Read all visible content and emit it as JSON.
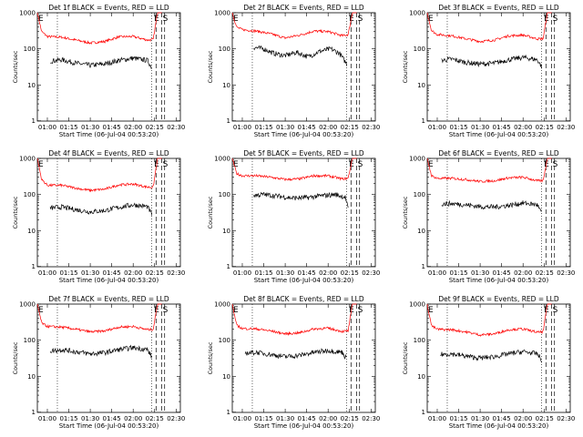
{
  "chart_data": [
    {
      "type": "line",
      "title": "Det 1f BLACK = Events, RED = LLD",
      "xlabel": "Start Time (06-Jul-04 00:53:20)",
      "ylabel": "Counts/sec",
      "yscale": "log",
      "ylim": [
        1,
        1000
      ],
      "xlim": [
        "00:53",
        "02:33"
      ],
      "x_ticks": [
        "01:00",
        "01:15",
        "01:30",
        "01:45",
        "02:00",
        "02:15",
        "02:30"
      ],
      "y_ticks": [
        "1",
        "10",
        "100",
        "1000"
      ],
      "markers": [
        "E",
        "S"
      ],
      "series": [
        {
          "color": "#ff0000",
          "x": [
            "00:53",
            "00:56",
            "01:00",
            "01:10",
            "01:20",
            "01:30",
            "01:40",
            "01:50",
            "02:00",
            "02:10",
            "02:14",
            "02:17",
            "02:20"
          ],
          "y": [
            1000,
            300,
            220,
            210,
            175,
            145,
            160,
            215,
            220,
            175,
            180,
            1000,
            1000
          ]
        },
        {
          "color": "#000000",
          "x": [
            "01:02",
            "01:10",
            "01:20",
            "01:30",
            "01:40",
            "01:50",
            "02:00",
            "02:10",
            "02:13"
          ],
          "y": [
            46,
            50,
            40,
            35,
            38,
            48,
            55,
            48,
            30
          ]
        }
      ]
    },
    {
      "type": "line",
      "title": "Det 2f BLACK = Events, RED = LLD",
      "xlabel": "Start Time (06-Jul-04 00:53:20)",
      "ylabel": "Counts/sec",
      "yscale": "log",
      "ylim": [
        1,
        1000
      ],
      "xlim": [
        "00:53",
        "02:33"
      ],
      "x_ticks": [
        "01:00",
        "01:15",
        "01:30",
        "01:45",
        "02:00",
        "02:15",
        "02:30"
      ],
      "y_ticks": [
        "1",
        "10",
        "100",
        "1000"
      ],
      "markers": [
        "E",
        "S"
      ],
      "series": [
        {
          "color": "#ff0000",
          "x": [
            "00:53",
            "00:56",
            "01:00",
            "01:10",
            "01:20",
            "01:30",
            "01:40",
            "01:50",
            "02:00",
            "02:10",
            "02:14",
            "02:17",
            "02:20"
          ],
          "y": [
            1000,
            400,
            340,
            310,
            260,
            200,
            240,
            310,
            300,
            230,
            250,
            1000,
            1000
          ]
        },
        {
          "color": "#000000",
          "x": [
            "01:08",
            "01:15",
            "01:22",
            "01:30",
            "01:38",
            "01:46",
            "01:54",
            "02:02",
            "02:08",
            "02:13"
          ],
          "y": [
            110,
            100,
            75,
            65,
            80,
            60,
            85,
            100,
            75,
            38
          ]
        }
      ]
    },
    {
      "type": "line",
      "title": "Det 3f BLACK = Events, RED = LLD",
      "xlabel": "Start Time (06-Jul-04 00:53:20)",
      "ylabel": "Counts/sec",
      "yscale": "log",
      "ylim": [
        1,
        1000
      ],
      "xlim": [
        "00:53",
        "02:33"
      ],
      "x_ticks": [
        "01:00",
        "01:15",
        "01:30",
        "01:45",
        "02:00",
        "02:15",
        "02:30"
      ],
      "y_ticks": [
        "1",
        "10",
        "100",
        "1000"
      ],
      "markers": [
        "E",
        "S"
      ],
      "series": [
        {
          "color": "#ff0000",
          "x": [
            "00:53",
            "00:56",
            "01:00",
            "01:10",
            "01:20",
            "01:30",
            "01:40",
            "01:50",
            "02:00",
            "02:10",
            "02:14",
            "02:17",
            "02:20"
          ],
          "y": [
            1000,
            320,
            250,
            230,
            190,
            160,
            175,
            230,
            240,
            190,
            190,
            1000,
            1000
          ]
        },
        {
          "color": "#000000",
          "x": [
            "01:03",
            "01:10",
            "01:20",
            "01:30",
            "01:40",
            "01:50",
            "02:00",
            "02:10",
            "02:13"
          ],
          "y": [
            48,
            52,
            42,
            38,
            40,
            50,
            58,
            50,
            32
          ]
        }
      ]
    },
    {
      "type": "line",
      "title": "Det 4f BLACK = Events, RED = LLD",
      "xlabel": "Start Time (06-Jul-04 00:53:20)",
      "ylabel": "Counts/sec",
      "yscale": "log",
      "ylim": [
        1,
        1000
      ],
      "xlim": [
        "00:53",
        "02:33"
      ],
      "x_ticks": [
        "01:00",
        "01:15",
        "01:30",
        "01:45",
        "02:00",
        "02:15",
        "02:30"
      ],
      "y_ticks": [
        "1",
        "10",
        "100",
        "1000"
      ],
      "markers": [
        "E",
        "S"
      ],
      "series": [
        {
          "color": "#ff0000",
          "x": [
            "00:53",
            "00:56",
            "01:00",
            "01:10",
            "01:20",
            "01:30",
            "01:40",
            "01:50",
            "02:00",
            "02:10",
            "02:14",
            "02:17",
            "02:20"
          ],
          "y": [
            1000,
            260,
            180,
            180,
            150,
            130,
            140,
            185,
            195,
            160,
            160,
            1000,
            1000
          ]
        },
        {
          "color": "#000000",
          "x": [
            "01:02",
            "01:10",
            "01:20",
            "01:30",
            "01:40",
            "01:50",
            "02:00",
            "02:10",
            "02:13"
          ],
          "y": [
            42,
            45,
            38,
            33,
            36,
            44,
            52,
            46,
            28
          ]
        }
      ]
    },
    {
      "type": "line",
      "title": "Det 5f BLACK = Events, RED = LLD",
      "xlabel": "Start Time (06-Jul-04 00:53:20)",
      "ylabel": "Counts/sec",
      "yscale": "log",
      "ylim": [
        1,
        1000
      ],
      "xlim": [
        "00:53",
        "02:33"
      ],
      "x_ticks": [
        "01:00",
        "01:15",
        "01:30",
        "01:45",
        "02:00",
        "02:15",
        "02:30"
      ],
      "y_ticks": [
        "1",
        "10",
        "100",
        "1000"
      ],
      "markers": [
        "E",
        "S"
      ],
      "series": [
        {
          "color": "#ff0000",
          "x": [
            "00:53",
            "00:56",
            "01:00",
            "01:10",
            "01:20",
            "01:30",
            "01:40",
            "01:50",
            "02:00",
            "02:10",
            "02:14",
            "02:17",
            "02:20"
          ],
          "y": [
            1000,
            380,
            330,
            330,
            300,
            260,
            270,
            330,
            330,
            270,
            280,
            1000,
            1000
          ]
        },
        {
          "color": "#000000",
          "x": [
            "01:08",
            "01:15",
            "01:25",
            "01:35",
            "01:45",
            "01:55",
            "02:05",
            "02:12",
            "02:14"
          ],
          "y": [
            95,
            100,
            90,
            80,
            82,
            92,
            100,
            85,
            40
          ]
        }
      ]
    },
    {
      "type": "line",
      "title": "Det 6f BLACK = Events, RED = LLD",
      "xlabel": "Start Time (06-Jul-04 00:53:20)",
      "ylabel": "Counts/sec",
      "yscale": "log",
      "ylim": [
        1,
        1000
      ],
      "xlim": [
        "00:53",
        "02:33"
      ],
      "x_ticks": [
        "01:00",
        "01:15",
        "01:30",
        "01:45",
        "02:00",
        "02:15",
        "02:30"
      ],
      "y_ticks": [
        "1",
        "10",
        "100",
        "1000"
      ],
      "markers": [
        "E",
        "S"
      ],
      "series": [
        {
          "color": "#ff0000",
          "x": [
            "00:53",
            "00:56",
            "01:00",
            "01:10",
            "01:20",
            "01:30",
            "01:40",
            "01:50",
            "02:00",
            "02:10",
            "02:14",
            "02:17",
            "02:20"
          ],
          "y": [
            1000,
            330,
            280,
            280,
            260,
            230,
            240,
            290,
            300,
            240,
            240,
            1000,
            1000
          ]
        },
        {
          "color": "#000000",
          "x": [
            "01:03",
            "01:10",
            "01:20",
            "01:30",
            "01:40",
            "01:50",
            "02:00",
            "02:10",
            "02:13"
          ],
          "y": [
            55,
            56,
            52,
            46,
            45,
            50,
            58,
            52,
            30
          ]
        }
      ]
    },
    {
      "type": "line",
      "title": "Det 7f BLACK = Events, RED = LLD",
      "xlabel": "Start Time (06-Jul-04 00:53:20)",
      "ylabel": "Counts/sec",
      "yscale": "log",
      "ylim": [
        1,
        1000
      ],
      "xlim": [
        "00:53",
        "02:33"
      ],
      "x_ticks": [
        "01:00",
        "01:15",
        "01:30",
        "01:45",
        "02:00",
        "02:15",
        "02:30"
      ],
      "y_ticks": [
        "1",
        "10",
        "100",
        "1000"
      ],
      "markers": [
        "E",
        "S"
      ],
      "series": [
        {
          "color": "#ff0000",
          "x": [
            "00:53",
            "00:56",
            "01:00",
            "01:10",
            "01:20",
            "01:30",
            "01:40",
            "01:50",
            "02:00",
            "02:10",
            "02:14",
            "02:17",
            "02:20"
          ],
          "y": [
            1000,
            300,
            240,
            230,
            200,
            170,
            180,
            230,
            240,
            195,
            200,
            1000,
            1000
          ]
        },
        {
          "color": "#000000",
          "x": [
            "01:02",
            "01:10",
            "01:20",
            "01:30",
            "01:40",
            "01:50",
            "02:00",
            "02:10",
            "02:13"
          ],
          "y": [
            50,
            55,
            48,
            42,
            45,
            55,
            62,
            55,
            34
          ]
        }
      ]
    },
    {
      "type": "line",
      "title": "Det 8f BLACK = Events, RED = LLD",
      "xlabel": "Start Time (06-Jul-04 00:53:20)",
      "ylabel": "Counts/sec",
      "yscale": "log",
      "ylim": [
        1,
        1000
      ],
      "xlim": [
        "00:53",
        "02:33"
      ],
      "x_ticks": [
        "01:00",
        "01:15",
        "01:30",
        "01:45",
        "02:00",
        "02:15",
        "02:30"
      ],
      "y_ticks": [
        "1",
        "10",
        "100",
        "1000"
      ],
      "markers": [
        "E",
        "S"
      ],
      "series": [
        {
          "color": "#ff0000",
          "x": [
            "00:53",
            "00:56",
            "01:00",
            "01:10",
            "01:20",
            "01:30",
            "01:40",
            "01:50",
            "02:00",
            "02:10",
            "02:14",
            "02:17",
            "02:20"
          ],
          "y": [
            1000,
            260,
            210,
            205,
            180,
            150,
            160,
            205,
            215,
            175,
            180,
            1000,
            1000
          ]
        },
        {
          "color": "#000000",
          "x": [
            "01:02",
            "01:10",
            "01:20",
            "01:30",
            "01:40",
            "01:50",
            "02:00",
            "02:10",
            "02:13"
          ],
          "y": [
            44,
            46,
            40,
            35,
            38,
            46,
            52,
            46,
            30
          ]
        }
      ]
    },
    {
      "type": "line",
      "title": "Det 9f BLACK = Events, RED = LLD",
      "xlabel": "Start Time (06-Jul-04 00:53:20)",
      "ylabel": "Counts/sec",
      "yscale": "log",
      "ylim": [
        1,
        1000
      ],
      "xlim": [
        "00:53",
        "02:33"
      ],
      "x_ticks": [
        "01:00",
        "01:15",
        "01:30",
        "01:45",
        "02:00",
        "02:15",
        "02:30"
      ],
      "y_ticks": [
        "1",
        "10",
        "100",
        "1000"
      ],
      "markers": [
        "E",
        "S"
      ],
      "series": [
        {
          "color": "#ff0000",
          "x": [
            "00:53",
            "00:56",
            "01:00",
            "01:10",
            "01:20",
            "01:30",
            "01:40",
            "01:50",
            "02:00",
            "02:10",
            "02:14",
            "02:17",
            "02:20"
          ],
          "y": [
            1000,
            250,
            200,
            195,
            170,
            140,
            150,
            195,
            205,
            165,
            170,
            1000,
            1000
          ]
        },
        {
          "color": "#000000",
          "x": [
            "01:02",
            "01:10",
            "01:20",
            "01:30",
            "01:40",
            "01:50",
            "02:00",
            "02:10",
            "02:13"
          ],
          "y": [
            40,
            42,
            36,
            32,
            35,
            42,
            48,
            42,
            28
          ]
        }
      ]
    }
  ]
}
